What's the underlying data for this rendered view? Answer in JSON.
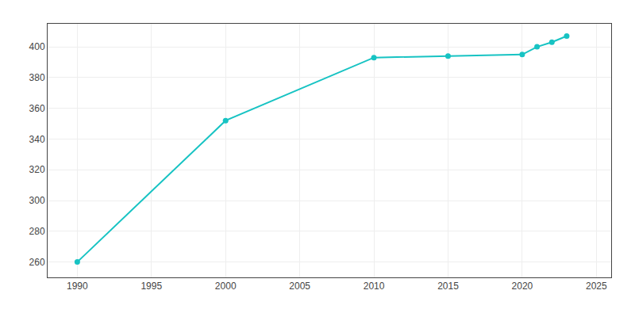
{
  "chart_data": {
    "type": "line",
    "x": [
      1990,
      2000,
      2010,
      2015,
      2020,
      2021,
      2022,
      2023
    ],
    "values": [
      260,
      352,
      393,
      394,
      395,
      400,
      403,
      407
    ],
    "color": "#17c3c3",
    "marker": "circle",
    "xlim": [
      1988,
      2026
    ],
    "ylim": [
      250,
      415
    ],
    "xticks": [
      1990,
      1995,
      2000,
      2005,
      2010,
      2015,
      2020,
      2025
    ],
    "yticks": [
      260,
      280,
      300,
      320,
      340,
      360,
      380,
      400
    ],
    "grid": true
  }
}
